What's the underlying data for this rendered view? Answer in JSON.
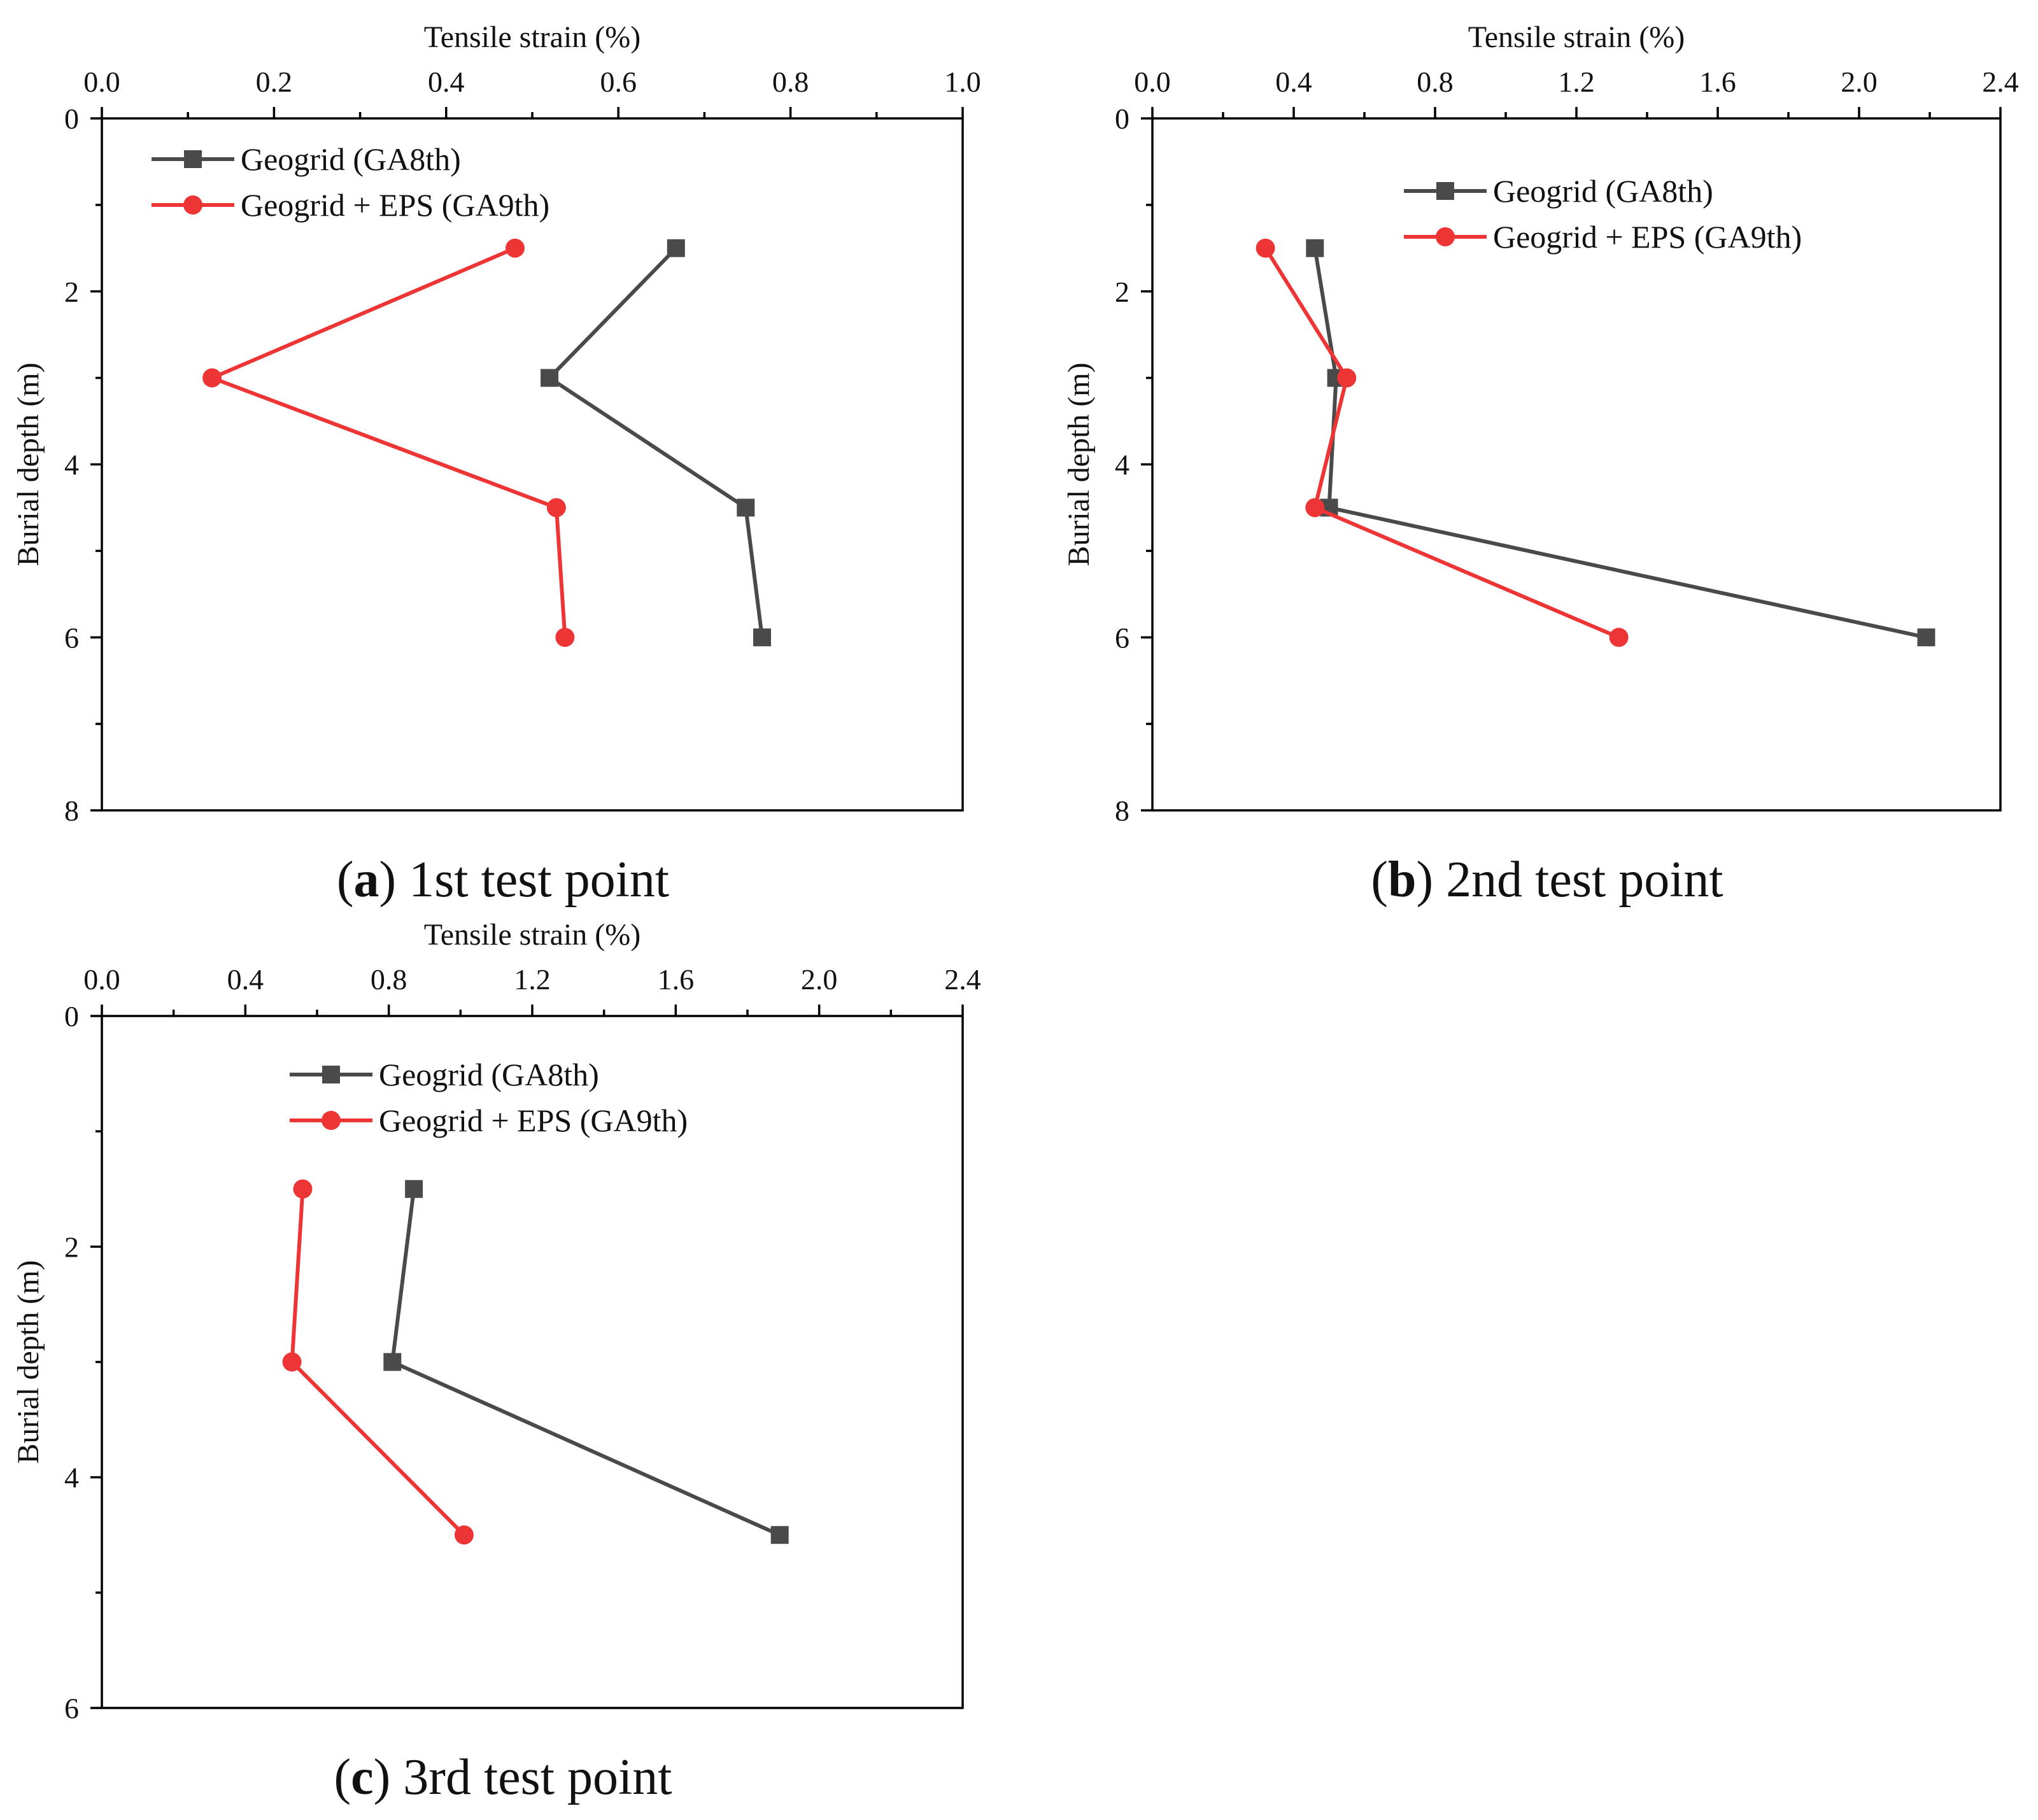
{
  "colors": {
    "geogrid": "#4a4a4a",
    "geogrid_eps": "#ee3535",
    "axis": "#000000",
    "background": "#ffffff"
  },
  "chart_data": [
    {
      "id": "a",
      "type": "line",
      "caption_letter": "a",
      "caption_text": " 1st test point",
      "xlabel": "Tensile strain (%)",
      "ylabel": "Burial depth (m)",
      "xlim": [
        0.0,
        1.0
      ],
      "ylim": [
        0,
        8
      ],
      "xticks": [
        "0.0",
        "0.2",
        "0.4",
        "0.6",
        "0.8",
        "1.0"
      ],
      "yticks": [
        "0",
        "2",
        "4",
        "6",
        "8"
      ],
      "y_inverted": true,
      "x_axis_position": "top",
      "legend_position": "top-left",
      "series": [
        {
          "name": "Geogrid (GA8th)",
          "marker": "square",
          "x": [
            0.667,
            0.52,
            0.748,
            0.767
          ],
          "y": [
            1.5,
            3,
            4.5,
            6
          ]
        },
        {
          "name": "Geogrid + EPS (GA9th)",
          "marker": "circle",
          "x": [
            0.48,
            0.128,
            0.528,
            0.538
          ],
          "y": [
            1.5,
            3,
            4.5,
            6
          ]
        }
      ]
    },
    {
      "id": "b",
      "type": "line",
      "caption_letter": "b",
      "caption_text": " 2nd test point",
      "xlabel": "Tensile strain (%)",
      "ylabel": "Burial depth (m)",
      "xlim": [
        0.0,
        2.4
      ],
      "ylim": [
        0,
        8
      ],
      "xticks": [
        "0.0",
        "0.4",
        "0.8",
        "1.2",
        "1.6",
        "2.0",
        "2.4"
      ],
      "yticks": [
        "0",
        "2",
        "4",
        "6",
        "8"
      ],
      "y_inverted": true,
      "x_axis_position": "top",
      "legend_position": "top-center",
      "series": [
        {
          "name": "Geogrid (GA8th)",
          "marker": "square",
          "x": [
            0.46,
            0.52,
            0.5,
            2.19
          ],
          "y": [
            1.5,
            3,
            4.5,
            6
          ]
        },
        {
          "name": "Geogrid + EPS (GA9th)",
          "marker": "circle",
          "x": [
            0.32,
            0.55,
            0.46,
            1.32
          ],
          "y": [
            1.5,
            3,
            4.5,
            6
          ]
        }
      ]
    },
    {
      "id": "c",
      "type": "line",
      "caption_letter": "c",
      "caption_text": " 3rd test point",
      "xlabel": "Tensile strain (%)",
      "ylabel": "Burial depth (m)",
      "xlim": [
        0.0,
        2.4
      ],
      "ylim": [
        0,
        6
      ],
      "xticks": [
        "0.0",
        "0.4",
        "0.8",
        "1.2",
        "1.6",
        "2.0",
        "2.4"
      ],
      "yticks": [
        "0",
        "2",
        "4",
        "6"
      ],
      "y_inverted": true,
      "x_axis_position": "top",
      "legend_position": "top-center",
      "series": [
        {
          "name": "Geogrid (GA8th)",
          "marker": "square",
          "x": [
            0.87,
            0.81,
            1.89
          ],
          "y": [
            1.5,
            3,
            4.5
          ]
        },
        {
          "name": "Geogrid + EPS (GA9th)",
          "marker": "circle",
          "x": [
            0.56,
            0.53,
            1.01
          ],
          "y": [
            1.5,
            3,
            4.5
          ]
        }
      ]
    }
  ]
}
